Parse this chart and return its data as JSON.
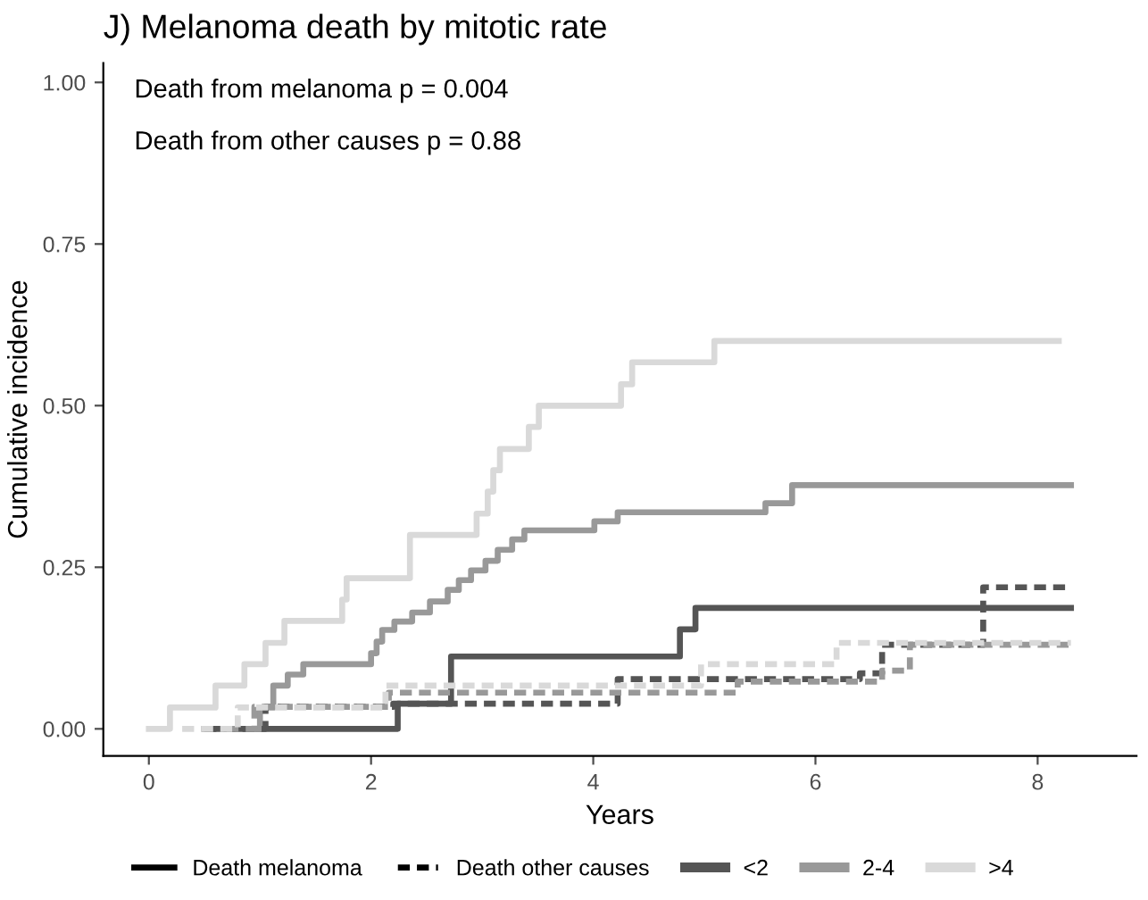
{
  "chart_data": {
    "type": "step",
    "title": "J) Melanoma death by mitotic rate",
    "xlabel": "Years",
    "ylabel": "Cumulative incidence",
    "annotations": [
      "Death from melanoma p = 0.004",
      "Death from other causes p = 0.88",
      "Death melanoma",
      "Death other causes"
    ],
    "xlim": [
      -0.41,
      8.89
    ],
    "ylim": [
      -0.042,
      1.03
    ],
    "xticks": [
      0,
      2,
      4,
      6,
      8
    ],
    "yticks": [
      {
        "value": 0,
        "label": "0.00"
      },
      {
        "value": 0.25,
        "label": "0.25"
      },
      {
        "value": 0.5,
        "label": "0.50"
      },
      {
        "value": 0.75,
        "label": "0.75"
      },
      {
        "value": 1,
        "label": "1.00"
      }
    ],
    "grid": false,
    "legend": "bottom",
    "series": [
      {
        "name": "<2",
        "color": "#555555",
        "line_style": "solid",
        "x": [
          0.5,
          2.24,
          2.72,
          4.78,
          4.92,
          8.3
        ],
        "values": [
          0,
          0.039,
          0.112,
          0.154,
          0.187,
          0.187
        ]
      },
      {
        "name": "2-4",
        "color": "#999999",
        "line_style": "solid",
        "x": [
          0.9,
          1.0,
          1.12,
          1.25,
          1.39,
          2.0,
          2.05,
          2.1,
          2.21,
          2.37,
          2.53,
          2.69,
          2.79,
          2.9,
          3.03,
          3.14,
          3.27,
          3.38,
          3.67,
          4.01,
          4.22,
          5.55,
          5.79,
          8.3
        ],
        "values": [
          0,
          0.033,
          0.067,
          0.084,
          0.1,
          0.117,
          0.135,
          0.153,
          0.166,
          0.18,
          0.197,
          0.215,
          0.23,
          0.245,
          0.26,
          0.277,
          0.293,
          0.307,
          0.307,
          0.321,
          0.335,
          0.349,
          0.377,
          0.377
        ]
      },
      {
        "name": ">4",
        "color": "#d9d9d9",
        "line_style": "solid",
        "x": [
          0,
          0.19,
          0.6,
          0.86,
          1.05,
          1.22,
          1.74,
          1.78,
          2.35,
          2.95,
          3.05,
          3.1,
          3.16,
          3.42,
          3.51,
          4.25,
          4.35,
          5.09,
          8.19
        ],
        "values": [
          0,
          0.033,
          0.067,
          0.1,
          0.133,
          0.167,
          0.2,
          0.233,
          0.3,
          0.333,
          0.367,
          0.4,
          0.433,
          0.467,
          0.5,
          0.533,
          0.567,
          0.6,
          0.6
        ]
      },
      {
        "color": "#555555",
        "line_style": "dashed",
        "x": [
          0.5,
          1.05,
          2.2,
          4.22,
          6.4,
          6.6,
          7.51,
          8.3
        ],
        "values": [
          0,
          0.034,
          0.039,
          0.077,
          0.086,
          0.13,
          0.219,
          0.219
        ]
      },
      {
        "color": "#999999",
        "line_style": "dashed",
        "x": [
          0.7,
          0.95,
          2.16,
          5.3,
          6.6,
          6.85,
          8.3
        ],
        "values": [
          0,
          0.034,
          0.056,
          0.073,
          0.09,
          0.13,
          0.13
        ]
      },
      {
        "color": "#d9d9d9",
        "line_style": "dashed",
        "x": [
          0.3,
          0.8,
          2.13,
          4.97,
          6.19,
          8.3
        ],
        "values": [
          0,
          0.033,
          0.067,
          0.1,
          0.133,
          0.133
        ]
      }
    ]
  }
}
